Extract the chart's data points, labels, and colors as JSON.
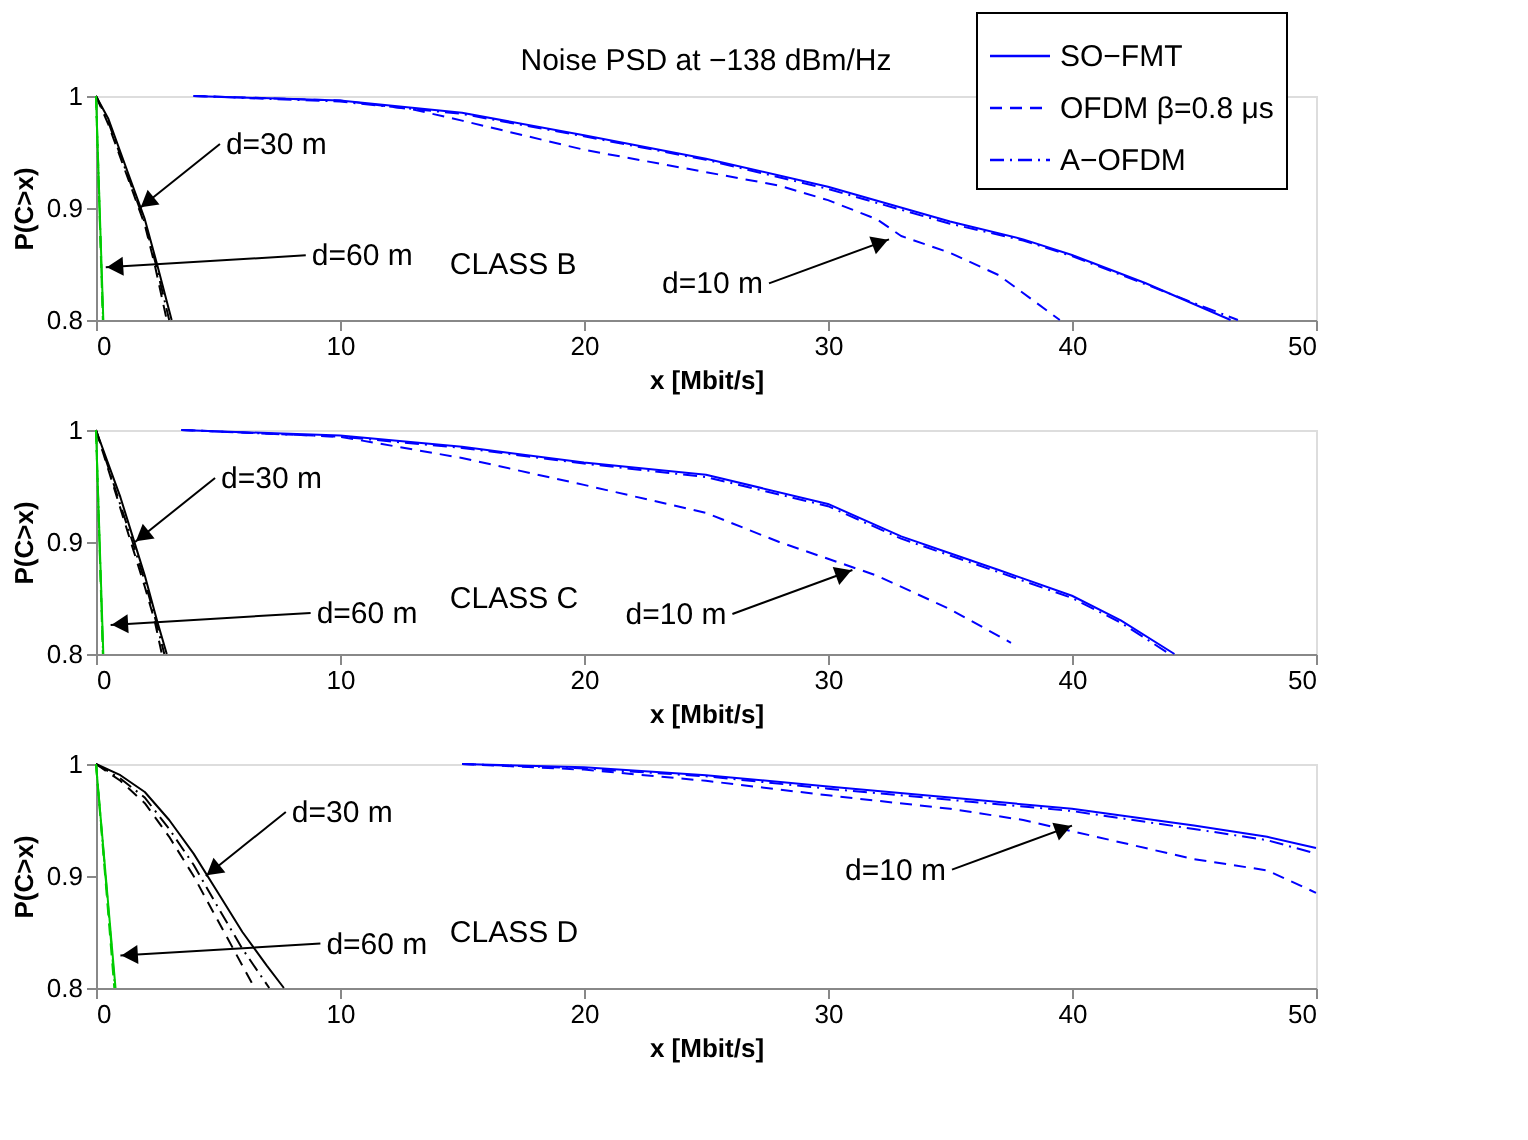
{
  "chart_data": [
    {
      "type": "line",
      "title": "Noise PSD at −138 dBm/Hz",
      "xlabel": "x [Mbit/s]",
      "ylabel": "P(C>x)",
      "xlim": [
        0,
        50
      ],
      "ylim": [
        0.8,
        1
      ],
      "xticks": [
        0,
        10,
        20,
        30,
        40,
        50
      ],
      "yticks": [
        0.8,
        0.9,
        1
      ],
      "grid": false,
      "legend": "top right",
      "annotations": [
        {
          "text": "d=30 m",
          "x": 1.8,
          "y": 0.9
        },
        {
          "text": "d=60 m",
          "x": 0.4,
          "y": 0.847
        },
        {
          "text": "d=10 m",
          "x": 32.5,
          "y": 0.872
        },
        "CLASS B"
      ],
      "series": [
        {
          "name": "SO−FMT",
          "color": "#0000ff",
          "line_style": "solid",
          "x": [
            4,
            10,
            15,
            20,
            25,
            30,
            35,
            38,
            40,
            43,
            46.5
          ],
          "values": [
            1,
            0.996,
            0.985,
            0.965,
            0.944,
            0.919,
            0.888,
            0.872,
            0.858,
            0.833,
            0.8
          ]
        },
        {
          "name": "OFDM β=0.8 μs",
          "color": "#0000ff",
          "line_style": "dashed",
          "x": [
            4,
            10,
            13,
            15,
            20,
            25,
            28,
            30,
            32,
            33,
            35,
            37,
            39.5
          ],
          "values": [
            1,
            0.996,
            0.988,
            0.978,
            0.952,
            0.932,
            0.92,
            0.907,
            0.89,
            0.875,
            0.86,
            0.84,
            0.8
          ]
        },
        {
          "name": "A−OFDM",
          "color": "#0000ff",
          "line_style": "dashdot",
          "x": [
            4,
            10,
            15,
            20,
            25,
            30,
            35,
            38,
            40,
            43,
            46.8
          ],
          "values": [
            1,
            0.995,
            0.984,
            0.964,
            0.943,
            0.917,
            0.886,
            0.871,
            0.857,
            0.832,
            0.8
          ]
        },
        {
          "color": "#000000",
          "line_style": "solid",
          "x": [
            0,
            0.5,
            1,
            1.5,
            2,
            2.5,
            3.1
          ],
          "values": [
            1,
            0.98,
            0.95,
            0.92,
            0.89,
            0.85,
            0.8
          ]
        },
        {
          "color": "#000000",
          "line_style": "dashed",
          "x": [
            0,
            0.5,
            1,
            1.5,
            2,
            2.4,
            2.9
          ],
          "values": [
            1,
            0.975,
            0.945,
            0.915,
            0.885,
            0.85,
            0.8
          ]
        },
        {
          "color": "#000000",
          "line_style": "dashdot",
          "x": [
            0,
            0.5,
            1,
            1.5,
            2,
            2.45,
            3.0
          ],
          "values": [
            1,
            0.977,
            0.947,
            0.917,
            0.887,
            0.85,
            0.8
          ]
        },
        {
          "color": "#00cc00",
          "line_style": "solid",
          "x": [
            0,
            0.3
          ],
          "values": [
            1,
            0.8
          ]
        },
        {
          "color": "#00cc00",
          "line_style": "dashed",
          "x": [
            0,
            0.28
          ],
          "values": [
            1,
            0.8
          ]
        },
        {
          "color": "#00cc00",
          "line_style": "dashdot",
          "x": [
            0,
            0.29
          ],
          "values": [
            1,
            0.8
          ]
        }
      ]
    },
    {
      "type": "line",
      "xlabel": "x [Mbit/s]",
      "ylabel": "P(C>x)",
      "xlim": [
        0,
        50
      ],
      "ylim": [
        0.8,
        1
      ],
      "xticks": [
        0,
        10,
        20,
        30,
        40,
        50
      ],
      "yticks": [
        0.8,
        0.9,
        1
      ],
      "grid": false,
      "annotations": [
        {
          "text": "d=30 m",
          "x": 1.6,
          "y": 0.9
        },
        {
          "text": "d=60 m",
          "x": 0.6,
          "y": 0.826
        },
        {
          "text": "d=10 m",
          "x": 31,
          "y": 0.875
        },
        "CLASS C"
      ],
      "series": [
        {
          "color": "#0000ff",
          "line_style": "solid",
          "x": [
            3.5,
            10,
            15,
            20,
            25,
            30,
            33,
            35,
            37,
            40,
            42,
            44.2
          ],
          "values": [
            1,
            0.995,
            0.985,
            0.971,
            0.96,
            0.934,
            0.905,
            0.89,
            0.875,
            0.852,
            0.83,
            0.8
          ]
        },
        {
          "color": "#0000ff",
          "line_style": "dashed",
          "x": [
            3.5,
            10,
            15,
            20,
            25,
            28,
            30,
            32,
            35,
            37.5
          ],
          "values": [
            1,
            0.994,
            0.975,
            0.951,
            0.926,
            0.9,
            0.885,
            0.87,
            0.84,
            0.81
          ]
        },
        {
          "color": "#0000ff",
          "line_style": "dashdot",
          "x": [
            3.5,
            10,
            15,
            20,
            25,
            30,
            33,
            35,
            37,
            40,
            42,
            44
          ],
          "values": [
            1,
            0.994,
            0.984,
            0.97,
            0.958,
            0.932,
            0.903,
            0.888,
            0.873,
            0.85,
            0.828,
            0.8
          ]
        },
        {
          "color": "#000000",
          "line_style": "solid",
          "x": [
            0,
            0.5,
            1,
            1.5,
            2,
            2.5,
            2.9
          ],
          "values": [
            1,
            0.97,
            0.94,
            0.905,
            0.87,
            0.83,
            0.8
          ]
        },
        {
          "color": "#000000",
          "line_style": "dashed",
          "x": [
            0,
            0.5,
            1,
            1.5,
            2,
            2.4,
            2.7
          ],
          "values": [
            1,
            0.965,
            0.93,
            0.895,
            0.86,
            0.83,
            0.8
          ]
        },
        {
          "color": "#000000",
          "line_style": "dashdot",
          "x": [
            0,
            0.5,
            1,
            1.5,
            2,
            2.45,
            2.8
          ],
          "values": [
            1,
            0.967,
            0.933,
            0.9,
            0.865,
            0.83,
            0.8
          ]
        },
        {
          "color": "#00cc00",
          "line_style": "solid",
          "x": [
            0,
            0.3
          ],
          "values": [
            1,
            0.8
          ]
        },
        {
          "color": "#00cc00",
          "line_style": "dashed",
          "x": [
            0,
            0.28
          ],
          "values": [
            1,
            0.8
          ]
        },
        {
          "color": "#00cc00",
          "line_style": "dashdot",
          "x": [
            0,
            0.29
          ],
          "values": [
            1,
            0.8
          ]
        }
      ]
    },
    {
      "type": "line",
      "xlabel": "x [Mbit/s]",
      "ylabel": "P(C>x)",
      "xlim": [
        0,
        50
      ],
      "ylim": [
        0.8,
        1
      ],
      "xticks": [
        0,
        10,
        20,
        30,
        40,
        50
      ],
      "yticks": [
        0.8,
        0.9,
        1
      ],
      "grid": false,
      "annotations": [
        {
          "text": "d=30 m",
          "x": 4.5,
          "y": 0.9
        },
        {
          "text": "d=60 m",
          "x": 1,
          "y": 0.829
        },
        {
          "text": "d=10 m",
          "x": 40,
          "y": 0.945
        },
        "CLASS D"
      ],
      "series": [
        {
          "color": "#0000ff",
          "line_style": "solid",
          "x": [
            15,
            20,
            25,
            30,
            35,
            40,
            45,
            48,
            50
          ],
          "values": [
            1,
            0.997,
            0.99,
            0.98,
            0.97,
            0.96,
            0.945,
            0.935,
            0.925
          ]
        },
        {
          "color": "#0000ff",
          "line_style": "dashed",
          "x": [
            15,
            20,
            25,
            30,
            35,
            38,
            40,
            45,
            48,
            50
          ],
          "values": [
            1,
            0.995,
            0.985,
            0.972,
            0.96,
            0.95,
            0.94,
            0.915,
            0.905,
            0.885
          ]
        },
        {
          "color": "#0000ff",
          "line_style": "dashdot",
          "x": [
            15,
            20,
            25,
            30,
            35,
            40,
            45,
            48,
            50
          ],
          "values": [
            1,
            0.996,
            0.989,
            0.978,
            0.968,
            0.958,
            0.942,
            0.932,
            0.92
          ]
        },
        {
          "color": "#000000",
          "line_style": "solid",
          "x": [
            0,
            1,
            2,
            3,
            4,
            5,
            6,
            7,
            7.7
          ],
          "values": [
            1,
            0.99,
            0.975,
            0.95,
            0.92,
            0.885,
            0.85,
            0.82,
            0.8
          ]
        },
        {
          "color": "#000000",
          "line_style": "dashed",
          "x": [
            0,
            1,
            2,
            3,
            4,
            5,
            6,
            6.5
          ],
          "values": [
            1,
            0.985,
            0.965,
            0.935,
            0.9,
            0.86,
            0.82,
            0.8
          ]
        },
        {
          "color": "#000000",
          "line_style": "dashdot",
          "x": [
            0,
            1,
            2,
            3,
            4,
            5,
            6,
            7.1
          ],
          "values": [
            1,
            0.987,
            0.97,
            0.942,
            0.91,
            0.872,
            0.835,
            0.8
          ]
        },
        {
          "color": "#00cc00",
          "line_style": "solid",
          "x": [
            0,
            0.8
          ],
          "values": [
            1,
            0.8
          ]
        },
        {
          "color": "#00cc00",
          "line_style": "dashed",
          "x": [
            0,
            0.75
          ],
          "values": [
            1,
            0.8
          ]
        },
        {
          "color": "#00cc00",
          "line_style": "dashdot",
          "x": [
            0,
            0.78
          ],
          "values": [
            1,
            0.8
          ]
        }
      ]
    }
  ]
}
